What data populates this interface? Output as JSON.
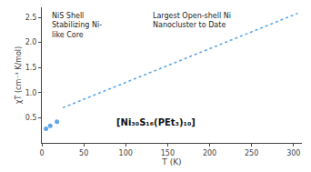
{
  "chart_data": {
    "type": "line",
    "xlabel": "T (K)",
    "ylabel": "χT (cm⁻³ K/mol)",
    "series": [
      {
        "type": "line",
        "x": [
          25,
          305
        ],
        "values": [
          0.7,
          2.58
        ],
        "color": "#5fa8e8",
        "line_style": "dotted"
      },
      {
        "type": "scatter",
        "x": [
          5,
          10,
          18
        ],
        "values": [
          0.28,
          0.34,
          0.42
        ],
        "color": "#5fa8e8",
        "marker": "circle"
      }
    ],
    "xlim": [
      0,
      310
    ],
    "ylim": [
      0,
      2.7
    ],
    "xticks": [
      0,
      50,
      100,
      150,
      200,
      250,
      300
    ],
    "yticks": [
      0.5,
      {
        "value": 1.0,
        "label": "1.0"
      },
      1.5,
      {
        "value": 2.0,
        "label": "2.0"
      },
      2.5
    ],
    "grid": false,
    "annotations": [
      "[Ni₃₀S₁₆(PEt₃)₁₀]",
      "Largest Open-shell Ni\nNanocluster to Date",
      "NiS Shell\nStabilizing Ni-\nlike Core"
    ]
  }
}
